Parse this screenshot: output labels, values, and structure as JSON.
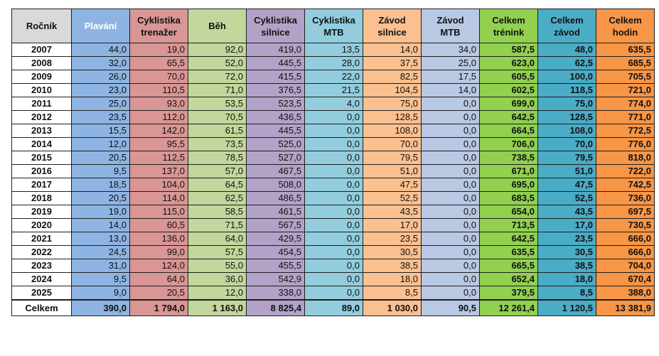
{
  "columns": [
    {
      "l1": "Ročník",
      "l2": ""
    },
    {
      "l1": "Plavání",
      "l2": ""
    },
    {
      "l1": "Cyklistika",
      "l2": "trenažer"
    },
    {
      "l1": "Běh",
      "l2": ""
    },
    {
      "l1": "Cyklistika",
      "l2": "silnice"
    },
    {
      "l1": "Cyklistika",
      "l2": "MTB"
    },
    {
      "l1": "Závod",
      "l2": "silnice"
    },
    {
      "l1": "Závod",
      "l2": "MTB"
    },
    {
      "l1": "Celkem",
      "l2": "trénink"
    },
    {
      "l1": "Celkem",
      "l2": "závod"
    },
    {
      "l1": "Celkem",
      "l2": "hodin"
    }
  ],
  "rows": [
    [
      "2007",
      "44,0",
      "19,0",
      "92,0",
      "419,0",
      "13,5",
      "14,0",
      "34,0",
      "587,5",
      "48,0",
      "635,5"
    ],
    [
      "2008",
      "32,0",
      "65,5",
      "52,0",
      "445,5",
      "28,0",
      "37,5",
      "25,0",
      "623,0",
      "62,5",
      "685,5"
    ],
    [
      "2009",
      "26,0",
      "70,0",
      "72,0",
      "415,5",
      "22,0",
      "82,5",
      "17,5",
      "605,5",
      "100,0",
      "705,5"
    ],
    [
      "2010",
      "23,0",
      "110,5",
      "71,0",
      "376,5",
      "21,5",
      "104,5",
      "14,0",
      "602,5",
      "118,5",
      "721,0"
    ],
    [
      "2011",
      "25,0",
      "93,0",
      "53,5",
      "523,5",
      "4,0",
      "75,0",
      "0,0",
      "699,0",
      "75,0",
      "774,0"
    ],
    [
      "2012",
      "23,5",
      "112,0",
      "70,5",
      "436,5",
      "0,0",
      "128,5",
      "0,0",
      "642,5",
      "128,5",
      "771,0"
    ],
    [
      "2013",
      "15,5",
      "142,0",
      "61,5",
      "445,5",
      "0,0",
      "108,0",
      "0,0",
      "664,5",
      "108,0",
      "772,5"
    ],
    [
      "2014",
      "12,0",
      "95,5",
      "73,5",
      "525,0",
      "0,0",
      "70,0",
      "0,0",
      "706,0",
      "70,0",
      "776,0"
    ],
    [
      "2015",
      "20,5",
      "112,5",
      "78,5",
      "527,0",
      "0,0",
      "79,5",
      "0,0",
      "738,5",
      "79,5",
      "818,0"
    ],
    [
      "2016",
      "9,5",
      "137,0",
      "57,0",
      "467,5",
      "0,0",
      "51,0",
      "0,0",
      "671,0",
      "51,0",
      "722,0"
    ],
    [
      "2017",
      "18,5",
      "104,0",
      "64,5",
      "508,0",
      "0,0",
      "47,5",
      "0,0",
      "695,0",
      "47,5",
      "742,5"
    ],
    [
      "2018",
      "20,5",
      "114,0",
      "62,5",
      "486,5",
      "0,0",
      "52,5",
      "0,0",
      "683,5",
      "52,5",
      "736,0"
    ],
    [
      "2019",
      "19,0",
      "115,0",
      "58,5",
      "461,5",
      "0,0",
      "43,5",
      "0,0",
      "654,0",
      "43,5",
      "697,5"
    ],
    [
      "2020",
      "14,0",
      "60,5",
      "71,5",
      "567,5",
      "0,0",
      "17,0",
      "0,0",
      "713,5",
      "17,0",
      "730,5"
    ],
    [
      "2021",
      "13,0",
      "136,0",
      "64,0",
      "429,5",
      "0,0",
      "23,5",
      "0,0",
      "642,5",
      "23,5",
      "666,0"
    ],
    [
      "2022",
      "24,5",
      "99,0",
      "57,5",
      "454,5",
      "0,0",
      "30,5",
      "0,0",
      "635,5",
      "30,5",
      "666,0"
    ],
    [
      "2023",
      "31,0",
      "124,0",
      "55,0",
      "455,5",
      "0,0",
      "38,5",
      "0,0",
      "665,5",
      "38,5",
      "704,0"
    ],
    [
      "2024",
      "9,5",
      "64,0",
      "36,0",
      "542,9",
      "0,0",
      "18,0",
      "0,0",
      "652,4",
      "18,0",
      "670,4"
    ],
    [
      "2025",
      "9,0",
      "20,5",
      "12,0",
      "338,0",
      "0,0",
      "8,5",
      "0,0",
      "379,5",
      "8,5",
      "388,0"
    ]
  ],
  "totals": [
    "Celkem",
    "390,0",
    "1 794,0",
    "1 163,0",
    "8 825,4",
    "89,0",
    "1 030,0",
    "90,5",
    "12 261,4",
    "1 120,5",
    "13 381,9"
  ],
  "colors": {
    "header_year": "#d9d9d9",
    "plavani": "#8eb4e3",
    "cyklistika_trenazer": "#d99694",
    "beh": "#c3d69b",
    "cyklistika_silnice": "#b3a2c7",
    "cyklistika_mtb": "#93cddd",
    "zavod_silnice": "#fac090",
    "zavod_mtb": "#b9c8e3",
    "celkem_trenink": "#92d050",
    "celkem_zavod": "#4bacc6",
    "celkem_hodin": "#f79646"
  }
}
